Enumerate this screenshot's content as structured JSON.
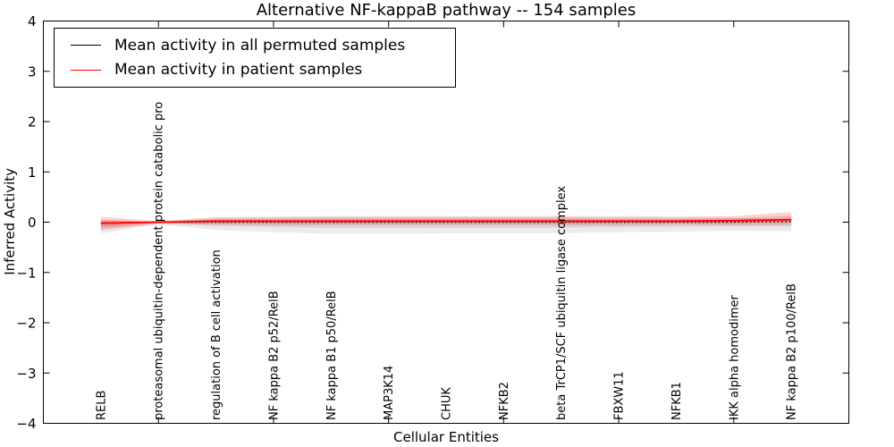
{
  "chart_data": {
    "type": "line",
    "title": "Alternative NF-kappaB pathway -- 154 samples",
    "xlabel": "Cellular Entities",
    "ylabel": "Inferred Activity",
    "ylim": [
      -4,
      4
    ],
    "ytick_labels": [
      "4",
      "3",
      "2",
      "1",
      "0",
      "−1",
      "−2",
      "−3",
      "−4"
    ],
    "ytick_values": [
      4,
      3,
      2,
      1,
      0,
      -1,
      -2,
      -3,
      -4
    ],
    "grid": false,
    "legend_position": "upper left",
    "categories": [
      "RELB",
      "proteasomal ubiquitin-dependent protein catabolic pro",
      "regulation of B cell activation",
      "NF kappa B2 p52/RelB",
      "NF kappa B1 p50/RelB",
      "MAP3K14",
      "CHUK",
      "NFKB2",
      "beta TrCP1/SCF ubiquitin ligase complex",
      "FBXW11",
      "NFKB1",
      "IKK alpha homodimer",
      "NF kappa B2 p100/RelB"
    ],
    "xtick_indices": [
      1,
      3,
      5,
      7,
      9,
      11
    ],
    "series": [
      {
        "name": "Mean activity in all permuted samples",
        "color": "#000000",
        "line_style": "dotted",
        "values": [
          -0.02,
          0.0,
          0.0,
          0.0,
          0.0,
          0.0,
          0.0,
          0.0,
          0.0,
          0.0,
          0.0,
          0.0,
          0.01
        ],
        "band_upper": [
          0.05,
          0.01,
          0.08,
          0.09,
          0.1,
          0.1,
          0.1,
          0.1,
          0.1,
          0.09,
          0.09,
          0.09,
          0.06
        ],
        "band_lower": [
          -0.23,
          -0.04,
          -0.16,
          -0.2,
          -0.23,
          -0.23,
          -0.22,
          -0.22,
          -0.22,
          -0.2,
          -0.19,
          -0.17,
          -0.18
        ],
        "band_color": "#000000",
        "band_alpha": 0.08
      },
      {
        "name": "Mean activity in patient samples",
        "color": "#ff0000",
        "line_style": "solid",
        "values": [
          -0.02,
          0.0,
          0.02,
          0.02,
          0.02,
          0.02,
          0.02,
          0.02,
          0.02,
          0.02,
          0.02,
          0.03,
          0.05
        ],
        "band_upper": [
          0.11,
          0.02,
          0.1,
          0.11,
          0.12,
          0.12,
          0.12,
          0.12,
          0.12,
          0.12,
          0.11,
          0.12,
          0.2
        ],
        "band_lower": [
          -0.16,
          -0.03,
          -0.05,
          -0.06,
          -0.06,
          -0.06,
          -0.06,
          -0.06,
          -0.06,
          -0.06,
          -0.05,
          -0.06,
          -0.05
        ],
        "band_color": "#ff0000",
        "band_alpha": 0.18
      }
    ]
  }
}
